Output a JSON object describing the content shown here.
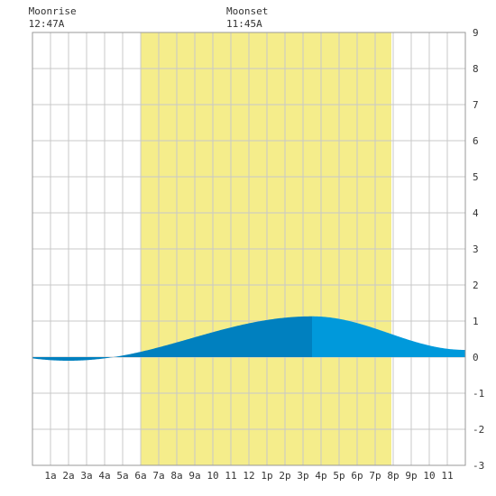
{
  "chart_data": {
    "type": "area",
    "title": "",
    "xlabel": "",
    "ylabel": "",
    "xlim": [
      0,
      24
    ],
    "ylim": [
      -3,
      9
    ],
    "x_ticks": [
      "1a",
      "2a",
      "3a",
      "4a",
      "5a",
      "6a",
      "7a",
      "8a",
      "9a",
      "10",
      "11",
      "12",
      "1p",
      "2p",
      "3p",
      "4p",
      "5p",
      "6p",
      "7p",
      "8p",
      "9p",
      "10",
      "11"
    ],
    "y_ticks": [
      -3,
      -2,
      -1,
      0,
      1,
      2,
      3,
      4,
      5,
      6,
      7,
      8,
      9
    ],
    "grid": true,
    "daylight": {
      "start_hour": 6.0,
      "end_hour": 19.9
    },
    "annotations": [
      {
        "label": "Moonrise",
        "time": "12:47A",
        "hour": 0.78
      },
      {
        "label": "Moonset",
        "time": "11:45A",
        "hour": 11.75
      }
    ],
    "tide": {
      "low": {
        "hour": 2.0,
        "value": -0.1
      },
      "high": {
        "hour": 15.5,
        "value": 1.13
      },
      "end_value": 0.2
    },
    "split_hour": 15.5,
    "colors": {
      "daylight": "#f5ed8b",
      "water_before": "#0080bf",
      "water_after": "#0099db",
      "grid": "#c8c8c8",
      "border": "#999999"
    }
  }
}
